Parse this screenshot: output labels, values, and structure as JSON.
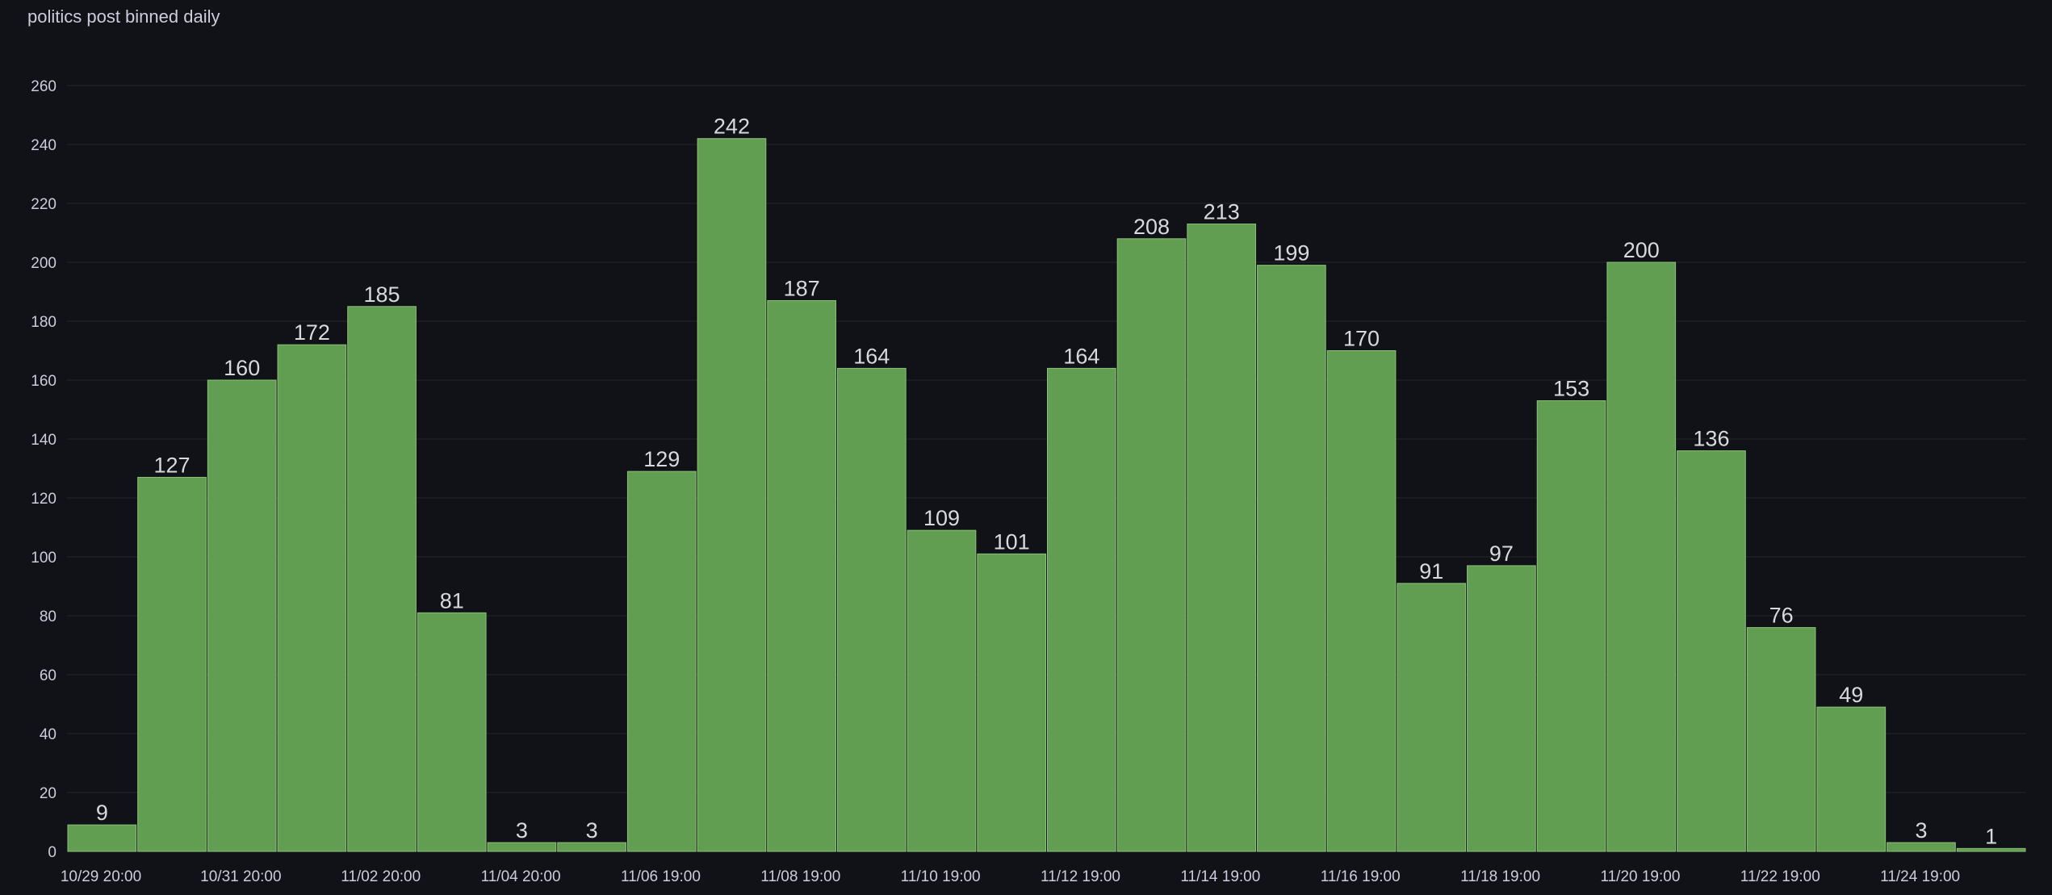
{
  "panel": {
    "title": "politics post binned daily"
  },
  "colors": {
    "background": "#111217",
    "bar_fill": "#629e51",
    "bar_stroke": "#8cc078",
    "grid": "#24262d",
    "text": "#ccccdc"
  },
  "chart_data": {
    "type": "bar",
    "title": "politics post binned daily",
    "xlabel": "",
    "ylabel": "",
    "ylim": [
      0,
      260
    ],
    "y_ticks": [
      0,
      20,
      40,
      60,
      80,
      100,
      120,
      140,
      160,
      180,
      200,
      220,
      240,
      260
    ],
    "grid": true,
    "show_value_labels": true,
    "x_tick_labels": [
      {
        "label": "10/29 20:00",
        "index": 0
      },
      {
        "label": "10/31 20:00",
        "index": 2
      },
      {
        "label": "11/02 20:00",
        "index": 4
      },
      {
        "label": "11/04 20:00",
        "index": 6
      },
      {
        "label": "11/06 19:00",
        "index": 8
      },
      {
        "label": "11/08 19:00",
        "index": 10
      },
      {
        "label": "11/10 19:00",
        "index": 12
      },
      {
        "label": "11/12 19:00",
        "index": 14
      },
      {
        "label": "11/14 19:00",
        "index": 16
      },
      {
        "label": "11/16 19:00",
        "index": 18
      },
      {
        "label": "11/18 19:00",
        "index": 20
      },
      {
        "label": "11/20 19:00",
        "index": 22
      },
      {
        "label": "11/22 19:00",
        "index": 24
      },
      {
        "label": "11/24 19:00",
        "index": 26
      }
    ],
    "values": [
      9,
      127,
      160,
      172,
      185,
      81,
      3,
      3,
      129,
      242,
      187,
      164,
      109,
      101,
      164,
      208,
      213,
      199,
      170,
      91,
      97,
      153,
      200,
      136,
      76,
      49,
      3,
      1
    ]
  }
}
